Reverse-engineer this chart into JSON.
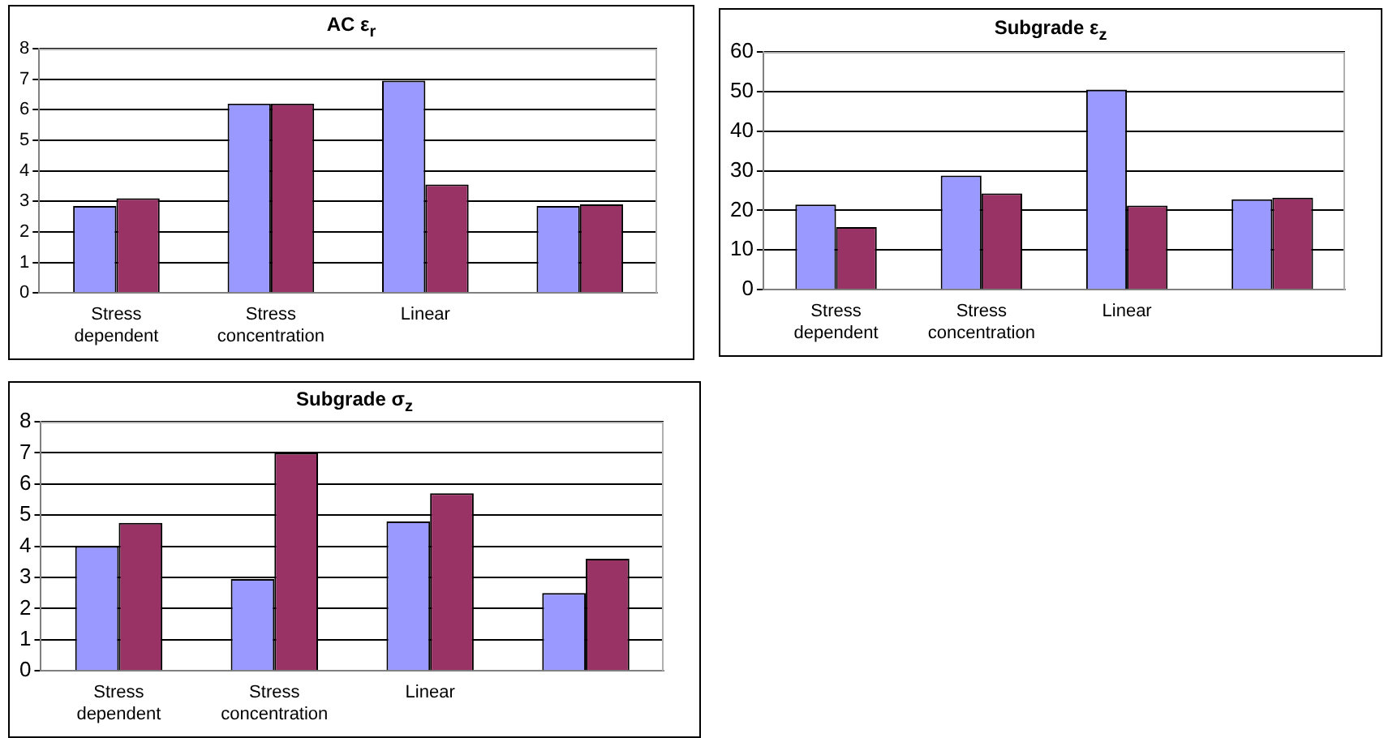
{
  "chart_data": [
    {
      "type": "bar",
      "title": "AC ε$_{r}$",
      "categories": [
        "Stress dependent",
        "Stress concentration",
        "Linear",
        null
      ],
      "series": [
        {
          "color": "#9999ff",
          "values": [
            2.85,
            6.2,
            6.95,
            2.85
          ]
        },
        {
          "color": "#993366",
          "values": [
            3.1,
            6.2,
            3.55,
            2.9
          ]
        }
      ],
      "ylim": [
        0,
        8
      ],
      "yticks": [
        0,
        1,
        2,
        3,
        4,
        5,
        6,
        7,
        8
      ],
      "grid": "y",
      "legend": false
    },
    {
      "type": "bar",
      "title": "Subgrade ε$_{z}$",
      "categories": [
        "Stress dependent",
        "Stress concentration",
        "Linear",
        null
      ],
      "series": [
        {
          "color": "#9999ff",
          "values": [
            21.5,
            28.8,
            50.5,
            22.8
          ]
        },
        {
          "color": "#993366",
          "values": [
            15.8,
            24.3,
            21.2,
            23.2
          ]
        }
      ],
      "ylim": [
        0,
        60
      ],
      "yticks": [
        0,
        10,
        20,
        30,
        40,
        50,
        60
      ],
      "grid": "y",
      "legend": false
    },
    {
      "type": "bar",
      "title": "Subgrade σ$_{z}$",
      "categories": [
        "Stress dependent",
        "Stress concentration",
        "Linear",
        null
      ],
      "series": [
        {
          "color": "#9999ff",
          "values": [
            4.0,
            2.95,
            4.8,
            2.5
          ]
        },
        {
          "color": "#993366",
          "values": [
            4.75,
            7.0,
            5.7,
            3.6
          ]
        }
      ],
      "ylim": [
        0,
        8
      ],
      "yticks": [
        0,
        1,
        2,
        3,
        4,
        5,
        6,
        7,
        8
      ],
      "grid": "y",
      "legend": false
    }
  ]
}
